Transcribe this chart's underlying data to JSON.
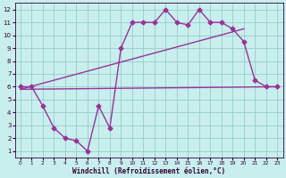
{
  "xlabel": "Windchill (Refroidissement éolien,°C)",
  "background_color": "#c8eeee",
  "grid_color": "#99cccc",
  "line_color": "#993399",
  "xlim": [
    -0.5,
    23.5
  ],
  "ylim": [
    0.5,
    12.5
  ],
  "xticks": [
    0,
    1,
    2,
    3,
    4,
    5,
    6,
    7,
    8,
    9,
    10,
    11,
    12,
    13,
    14,
    15,
    16,
    17,
    18,
    19,
    20,
    21,
    22,
    23
  ],
  "yticks": [
    1,
    2,
    3,
    4,
    5,
    6,
    7,
    8,
    9,
    10,
    11,
    12
  ],
  "line1_x": [
    0,
    1,
    2,
    3,
    4,
    5,
    6,
    7,
    8,
    9,
    10,
    11,
    12,
    13,
    14,
    15,
    16,
    17,
    18,
    19,
    20,
    21,
    22,
    23
  ],
  "line1_y": [
    6.0,
    6.0,
    4.5,
    2.8,
    2.0,
    1.8,
    1.0,
    4.5,
    2.8,
    9.0,
    11.0,
    11.0,
    11.0,
    12.0,
    11.0,
    10.8,
    12.0,
    11.0,
    11.0,
    10.5,
    9.5,
    6.5,
    6.0,
    6.0
  ],
  "line2_x": [
    0,
    23
  ],
  "line2_y": [
    5.8,
    6.0
  ],
  "line3_x": [
    0,
    20
  ],
  "line3_y": [
    5.8,
    10.5
  ],
  "marker": "D",
  "marker_size": 2.5,
  "linewidth": 1.0
}
